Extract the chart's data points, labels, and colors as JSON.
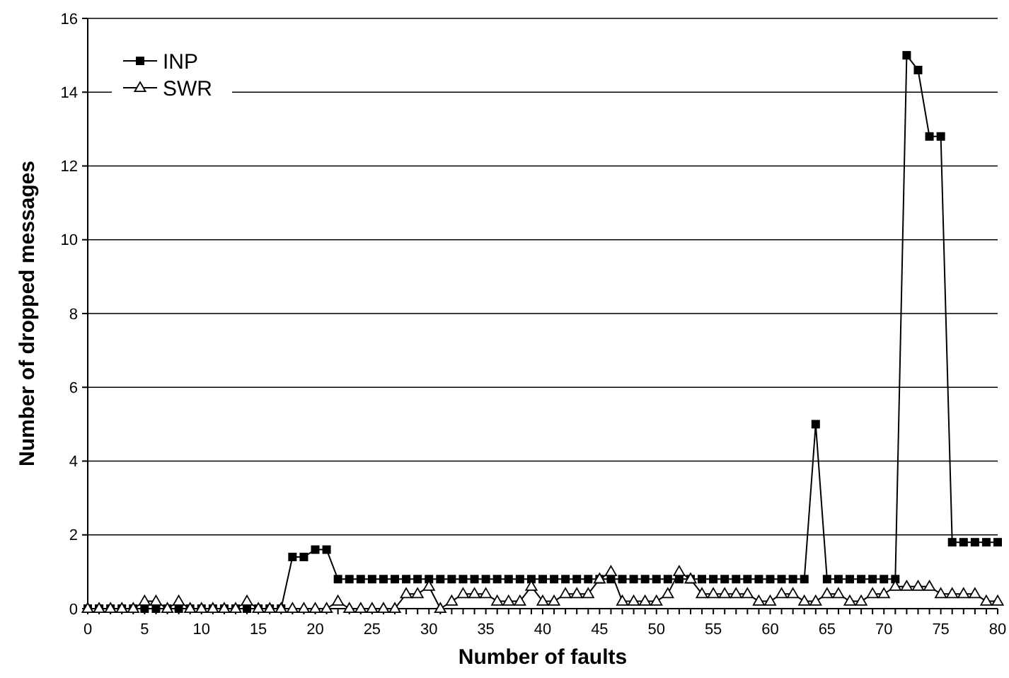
{
  "chart_data": {
    "type": "line",
    "xlabel": "Number of faults",
    "ylabel": "Number of dropped messages",
    "x": [
      0,
      1,
      2,
      3,
      4,
      5,
      6,
      7,
      8,
      9,
      10,
      11,
      12,
      13,
      14,
      15,
      16,
      17,
      18,
      19,
      20,
      21,
      22,
      23,
      24,
      25,
      26,
      27,
      28,
      29,
      30,
      31,
      32,
      33,
      34,
      35,
      36,
      37,
      38,
      39,
      40,
      41,
      42,
      43,
      44,
      45,
      46,
      47,
      48,
      49,
      50,
      51,
      52,
      53,
      54,
      55,
      56,
      57,
      58,
      59,
      60,
      61,
      62,
      63,
      64,
      65,
      66,
      67,
      68,
      69,
      70,
      71,
      72,
      73,
      74,
      75,
      76,
      77,
      78,
      79,
      80
    ],
    "series": [
      {
        "name": "INP",
        "color": "#000000",
        "marker": "square",
        "values": [
          0,
          0,
          0,
          0,
          0,
          0,
          0,
          0,
          0,
          0,
          0,
          0,
          0,
          0,
          0,
          0,
          0,
          0,
          1.4,
          1.4,
          1.6,
          1.6,
          0.8,
          0.8,
          0.8,
          0.8,
          0.8,
          0.8,
          0.8,
          0.8,
          0.8,
          0.8,
          0.8,
          0.8,
          0.8,
          0.8,
          0.8,
          0.8,
          0.8,
          0.8,
          0.8,
          0.8,
          0.8,
          0.8,
          0.8,
          0.8,
          0.8,
          0.8,
          0.8,
          0.8,
          0.8,
          0.8,
          0.8,
          0.8,
          0.8,
          0.8,
          0.8,
          0.8,
          0.8,
          0.8,
          0.8,
          0.8,
          0.8,
          0.8,
          5,
          0.8,
          0.8,
          0.8,
          0.8,
          0.8,
          0.8,
          0.8,
          15,
          14.6,
          12.8,
          12.8,
          1.8,
          1.8,
          1.8,
          1.8,
          1.8
        ]
      },
      {
        "name": "SWR",
        "color": "#000000",
        "marker": "triangle",
        "values": [
          0,
          0,
          0,
          0,
          0,
          0.2,
          0.2,
          0,
          0.2,
          0,
          0,
          0,
          0,
          0,
          0.2,
          0,
          0,
          0,
          0,
          0,
          0,
          0,
          0.2,
          0,
          0,
          0,
          0,
          0,
          0.4,
          0.4,
          0.6,
          0,
          0.2,
          0.4,
          0.4,
          0.4,
          0.2,
          0.2,
          0.2,
          0.6,
          0.2,
          0.2,
          0.4,
          0.4,
          0.4,
          0.8,
          1,
          0.2,
          0.2,
          0.2,
          0.2,
          0.4,
          1,
          0.8,
          0.4,
          0.4,
          0.4,
          0.4,
          0.4,
          0.2,
          0.2,
          0.4,
          0.4,
          0.2,
          0.2,
          0.4,
          0.4,
          0.2,
          0.2,
          0.4,
          0.4,
          0.6,
          0.6,
          0.6,
          0.6,
          0.4,
          0.4,
          0.4,
          0.4,
          0.2,
          0.2
        ]
      }
    ],
    "xlim": [
      0,
      80
    ],
    "xticks": [
      0,
      {
        "value": 1,
        "label": null
      },
      {
        "value": 2,
        "label": null
      },
      {
        "value": 3,
        "label": null
      },
      {
        "value": 4,
        "label": null
      },
      5,
      {
        "value": 6,
        "label": null
      },
      {
        "value": 7,
        "label": null
      },
      {
        "value": 8,
        "label": null
      },
      {
        "value": 9,
        "label": null
      },
      10,
      {
        "value": 11,
        "label": null
      },
      {
        "value": 12,
        "label": null
      },
      {
        "value": 13,
        "label": null
      },
      {
        "value": 14,
        "label": null
      },
      15,
      {
        "value": 16,
        "label": null
      },
      {
        "value": 17,
        "label": null
      },
      {
        "value": 18,
        "label": null
      },
      {
        "value": 19,
        "label": null
      },
      20,
      {
        "value": 21,
        "label": null
      },
      {
        "value": 22,
        "label": null
      },
      {
        "value": 23,
        "label": null
      },
      {
        "value": 24,
        "label": null
      },
      25,
      {
        "value": 26,
        "label": null
      },
      {
        "value": 27,
        "label": null
      },
      {
        "value": 28,
        "label": null
      },
      {
        "value": 29,
        "label": null
      },
      30,
      {
        "value": 31,
        "label": null
      },
      {
        "value": 32,
        "label": null
      },
      {
        "value": 33,
        "label": null
      },
      {
        "value": 34,
        "label": null
      },
      35,
      {
        "value": 36,
        "label": null
      },
      {
        "value": 37,
        "label": null
      },
      {
        "value": 38,
        "label": null
      },
      {
        "value": 39,
        "label": null
      },
      40,
      {
        "value": 41,
        "label": null
      },
      {
        "value": 42,
        "label": null
      },
      {
        "value": 43,
        "label": null
      },
      {
        "value": 44,
        "label": null
      },
      45,
      {
        "value": 46,
        "label": null
      },
      {
        "value": 47,
        "label": null
      },
      {
        "value": 48,
        "label": null
      },
      {
        "value": 49,
        "label": null
      },
      50,
      {
        "value": 51,
        "label": null
      },
      {
        "value": 52,
        "label": null
      },
      {
        "value": 53,
        "label": null
      },
      {
        "value": 54,
        "label": null
      },
      55,
      {
        "value": 56,
        "label": null
      },
      {
        "value": 57,
        "label": null
      },
      {
        "value": 58,
        "label": null
      },
      {
        "value": 59,
        "label": null
      },
      60,
      {
        "value": 61,
        "label": null
      },
      {
        "value": 62,
        "label": null
      },
      {
        "value": 63,
        "label": null
      },
      {
        "value": 64,
        "label": null
      },
      65,
      {
        "value": 66,
        "label": null
      },
      {
        "value": 67,
        "label": null
      },
      {
        "value": 68,
        "label": null
      },
      {
        "value": 69,
        "label": null
      },
      70,
      {
        "value": 71,
        "label": null
      },
      {
        "value": 72,
        "label": null
      },
      {
        "value": 73,
        "label": null
      },
      {
        "value": 74,
        "label": null
      },
      75,
      {
        "value": 76,
        "label": null
      },
      {
        "value": 77,
        "label": null
      },
      {
        "value": 78,
        "label": null
      },
      {
        "value": 79,
        "label": null
      },
      80
    ],
    "ylim": [
      0,
      16
    ],
    "yticks": [
      0,
      2,
      4,
      6,
      8,
      10,
      12,
      14,
      16
    ],
    "grid": "y",
    "legend": "top left",
    "line_style": "solid"
  }
}
